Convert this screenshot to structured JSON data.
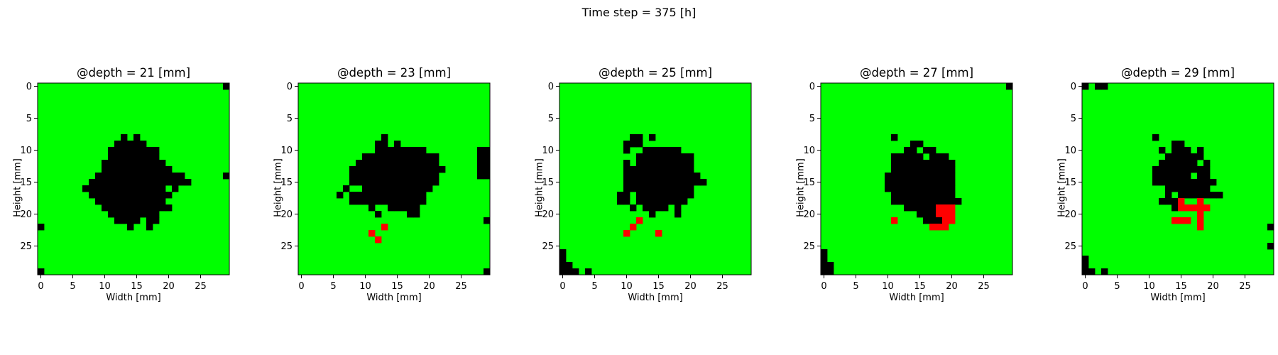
{
  "suptitle": "Time step = 375 [h]",
  "colors": {
    "healthy": "#00ff00",
    "necrotic": "#000000",
    "tumor": "#ff0000"
  },
  "chart_data": {
    "type": "heatmap",
    "grid_size": 30,
    "xlabel": "Width [mm]",
    "ylabel": "Height [mm]",
    "xticks": [
      0,
      5,
      10,
      15,
      20,
      25
    ],
    "yticks": [
      0,
      5,
      10,
      15,
      20,
      25
    ],
    "legend": "none",
    "grid": false,
    "value_legend": {
      "0": "green",
      "1": "black",
      "2": "red"
    },
    "panels": [
      {
        "title": "@depth = 21 [mm]",
        "black_runs": [
          [
            0,
            29,
            29
          ],
          [
            8,
            13,
            13
          ],
          [
            8,
            15,
            15
          ],
          [
            9,
            12,
            16
          ],
          [
            10,
            11,
            18
          ],
          [
            11,
            11,
            18
          ],
          [
            12,
            10,
            19
          ],
          [
            13,
            10,
            20
          ],
          [
            14,
            9,
            22
          ],
          [
            14,
            29,
            29
          ],
          [
            15,
            8,
            23
          ],
          [
            16,
            7,
            21
          ],
          [
            17,
            8,
            20
          ],
          [
            18,
            9,
            19
          ],
          [
            19,
            10,
            20
          ],
          [
            20,
            11,
            18
          ],
          [
            21,
            12,
            15
          ],
          [
            21,
            17,
            18
          ],
          [
            22,
            0,
            0
          ],
          [
            22,
            14,
            14
          ],
          [
            22,
            17,
            17
          ],
          [
            29,
            0,
            0
          ]
        ],
        "red_cells": [],
        "green_cells": [
          [
            16,
            20
          ],
          [
            17,
            21
          ]
        ]
      },
      {
        "title": "@depth = 23 [mm]",
        "black_runs": [
          [
            8,
            13,
            13
          ],
          [
            9,
            12,
            13
          ],
          [
            9,
            15,
            15
          ],
          [
            10,
            12,
            19
          ],
          [
            10,
            28,
            29
          ],
          [
            11,
            10,
            20
          ],
          [
            11,
            21,
            21
          ],
          [
            11,
            28,
            29
          ],
          [
            12,
            9,
            21
          ],
          [
            12,
            28,
            29
          ],
          [
            13,
            8,
            22
          ],
          [
            13,
            28,
            29
          ],
          [
            14,
            8,
            21
          ],
          [
            14,
            28,
            29
          ],
          [
            15,
            8,
            21
          ],
          [
            16,
            7,
            20
          ],
          [
            17,
            6,
            19
          ],
          [
            18,
            8,
            19
          ],
          [
            19,
            11,
            18
          ],
          [
            20,
            12,
            12
          ],
          [
            20,
            17,
            18
          ],
          [
            21,
            29,
            29
          ],
          [
            29,
            29,
            29
          ]
        ],
        "red_cells": [
          [
            22,
            13
          ],
          [
            23,
            11
          ],
          [
            24,
            12
          ]
        ],
        "green_cells": [
          [
            16,
            8
          ],
          [
            16,
            9
          ],
          [
            17,
            7
          ],
          [
            19,
            12
          ],
          [
            19,
            13
          ]
        ]
      },
      {
        "title": "@depth = 25 [mm]",
        "black_runs": [
          [
            8,
            11,
            12
          ],
          [
            8,
            14,
            14
          ],
          [
            9,
            10,
            12
          ],
          [
            10,
            10,
            10
          ],
          [
            10,
            13,
            18
          ],
          [
            11,
            12,
            20
          ],
          [
            12,
            10,
            20
          ],
          [
            13,
            10,
            20
          ],
          [
            14,
            10,
            21
          ],
          [
            15,
            10,
            22
          ],
          [
            16,
            10,
            20
          ],
          [
            17,
            9,
            20
          ],
          [
            18,
            9,
            19
          ],
          [
            19,
            11,
            18
          ],
          [
            20,
            14,
            14
          ],
          [
            20,
            18,
            18
          ],
          [
            26,
            0,
            0
          ],
          [
            27,
            0,
            0
          ],
          [
            28,
            0,
            1
          ],
          [
            29,
            0,
            2
          ],
          [
            29,
            4,
            4
          ]
        ],
        "red_cells": [
          [
            21,
            12
          ],
          [
            22,
            11
          ],
          [
            23,
            10
          ],
          [
            23,
            15
          ]
        ],
        "green_cells": [
          [
            12,
            11
          ],
          [
            17,
            11
          ],
          [
            18,
            11
          ],
          [
            19,
            12
          ],
          [
            19,
            17
          ]
        ]
      },
      {
        "title": "@depth = 27 [mm]",
        "black_runs": [
          [
            0,
            29,
            29
          ],
          [
            8,
            11,
            11
          ],
          [
            9,
            14,
            15
          ],
          [
            10,
            13,
            17
          ],
          [
            11,
            11,
            19
          ],
          [
            12,
            11,
            20
          ],
          [
            13,
            11,
            20
          ],
          [
            14,
            10,
            20
          ],
          [
            15,
            10,
            20
          ],
          [
            16,
            10,
            20
          ],
          [
            17,
            11,
            20
          ],
          [
            18,
            11,
            21
          ],
          [
            19,
            13,
            17
          ],
          [
            20,
            15,
            18
          ],
          [
            21,
            16,
            18
          ],
          [
            26,
            0,
            0
          ],
          [
            27,
            0,
            0
          ],
          [
            28,
            0,
            1
          ],
          [
            29,
            0,
            1
          ]
        ],
        "red_cells": [
          [
            19,
            18
          ],
          [
            19,
            19
          ],
          [
            19,
            20
          ],
          [
            20,
            18
          ],
          [
            20,
            19
          ],
          [
            20,
            20
          ],
          [
            21,
            11
          ],
          [
            22,
            17
          ],
          [
            22,
            18
          ],
          [
            22,
            19
          ],
          [
            21,
            19
          ],
          [
            21,
            20
          ]
        ],
        "green_cells": [
          [
            10,
            15
          ],
          [
            11,
            16
          ]
        ]
      },
      {
        "title": "@depth = 29 [mm]",
        "black_runs": [
          [
            0,
            0,
            0
          ],
          [
            0,
            2,
            3
          ],
          [
            8,
            11,
            11
          ],
          [
            9,
            14,
            15
          ],
          [
            10,
            12,
            12
          ],
          [
            10,
            14,
            16
          ],
          [
            10,
            18,
            18
          ],
          [
            11,
            13,
            18
          ],
          [
            12,
            12,
            19
          ],
          [
            13,
            11,
            19
          ],
          [
            14,
            11,
            19
          ],
          [
            15,
            11,
            20
          ],
          [
            16,
            13,
            19
          ],
          [
            17,
            13,
            21
          ],
          [
            18,
            12,
            18
          ],
          [
            19,
            14,
            15
          ],
          [
            22,
            29,
            29
          ],
          [
            25,
            29,
            29
          ],
          [
            27,
            0,
            0
          ],
          [
            28,
            0,
            0
          ],
          [
            29,
            0,
            1
          ],
          [
            29,
            3,
            3
          ]
        ],
        "red_cells": [
          [
            18,
            15
          ],
          [
            18,
            18
          ],
          [
            19,
            15
          ],
          [
            19,
            16
          ],
          [
            19,
            17
          ],
          [
            19,
            18
          ],
          [
            19,
            19
          ],
          [
            20,
            18
          ],
          [
            21,
            14
          ],
          [
            21,
            15
          ],
          [
            21,
            16
          ],
          [
            21,
            18
          ],
          [
            22,
            18
          ]
        ],
        "green_cells": [
          [
            12,
            18
          ],
          [
            14,
            17
          ],
          [
            17,
            14
          ],
          [
            18,
            16
          ],
          [
            18,
            17
          ],
          [
            20,
            16
          ],
          [
            20,
            17
          ],
          [
            20,
            19
          ]
        ]
      }
    ]
  }
}
